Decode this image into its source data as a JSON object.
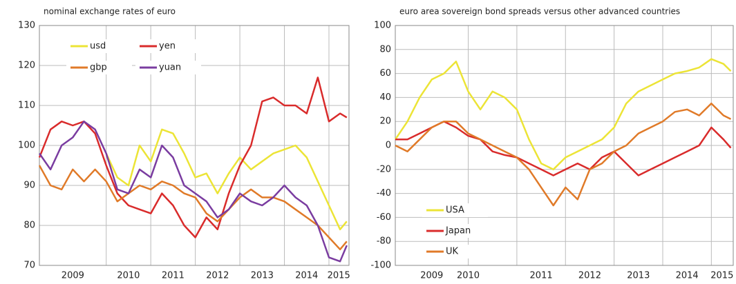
{
  "chart_data": [
    {
      "type": "line",
      "title": "nominal exchange rates of euro",
      "x": [
        2008.5,
        2008.75,
        2009.0,
        2009.25,
        2009.5,
        2009.75,
        2010.0,
        2010.25,
        2010.5,
        2010.75,
        2011.0,
        2011.25,
        2011.5,
        2011.75,
        2012.0,
        2012.25,
        2012.5,
        2012.75,
        2013.0,
        2013.25,
        2013.5,
        2013.75,
        2014.0,
        2014.25,
        2014.5,
        2014.75,
        2015.0,
        2015.25,
        2015.4
      ],
      "series": [
        {
          "name": "usd",
          "color": "#ece436",
          "values": [
            null,
            null,
            null,
            null,
            null,
            null,
            98,
            92,
            90,
            100,
            96,
            104,
            103,
            98,
            92,
            93,
            88,
            93,
            97,
            94,
            96,
            98,
            99,
            100,
            97,
            91,
            85,
            79,
            81
          ]
        },
        {
          "name": "yen",
          "color": "#d92b2b",
          "values": [
            97,
            104,
            106,
            105,
            106,
            103,
            95,
            88,
            85,
            84,
            83,
            88,
            85,
            80,
            77,
            82,
            79,
            88,
            95,
            100,
            111,
            112,
            110,
            110,
            108,
            117,
            106,
            108,
            107
          ]
        },
        {
          "name": "gbp",
          "color": "#e07a28",
          "values": [
            95,
            90,
            89,
            94,
            91,
            94,
            91,
            86,
            88,
            90,
            89,
            91,
            90,
            88,
            87,
            83,
            81,
            84,
            87,
            89,
            87,
            87,
            86,
            84,
            82,
            80,
            77,
            74,
            76
          ]
        },
        {
          "name": "yuan",
          "color": "#7a3ca0",
          "values": [
            98,
            94,
            100,
            102,
            106,
            104,
            98,
            89,
            88,
            94,
            92,
            100,
            97,
            90,
            88,
            86,
            82,
            84,
            88,
            86,
            85,
            87,
            90,
            87,
            85,
            80,
            72,
            71,
            75
          ]
        }
      ],
      "xlim": [
        2008.5,
        2015.45
      ],
      "xticks": [
        {
          "value": 2009.25,
          "label": "2009"
        },
        {
          "value": 2010.5,
          "label": "2010"
        },
        {
          "value": 2011.5,
          "label": "2011"
        },
        {
          "value": 2012.5,
          "label": "2012"
        },
        {
          "value": 2013.5,
          "label": "2013"
        },
        {
          "value": 2014.5,
          "label": "2014"
        },
        {
          "value": 2015.22,
          "label": "2015"
        }
      ],
      "xgrid": [
        2010,
        2011,
        2012,
        2013,
        2014,
        2015
      ],
      "ylim": [
        70,
        130
      ],
      "yticks": [
        70,
        80,
        90,
        100,
        110,
        120,
        130
      ],
      "grid": true,
      "legend": "upper left",
      "legend_columns": 2
    },
    {
      "type": "line",
      "title": "euro area sovereign bond spreads versus other advanced countries",
      "x": [
        2008.5,
        2008.75,
        2009.0,
        2009.25,
        2009.5,
        2009.75,
        2010.0,
        2010.25,
        2010.5,
        2010.75,
        2011.0,
        2011.25,
        2011.5,
        2011.75,
        2012.0,
        2012.25,
        2012.5,
        2012.75,
        2013.0,
        2013.25,
        2013.5,
        2013.75,
        2014.0,
        2014.25,
        2014.5,
        2014.75,
        2015.0,
        2015.25,
        2015.4
      ],
      "series": [
        {
          "name": "USA",
          "color": "#ece436",
          "values": [
            5,
            20,
            40,
            55,
            60,
            70,
            45,
            30,
            45,
            40,
            30,
            5,
            -15,
            -20,
            -10,
            -5,
            0,
            5,
            15,
            35,
            45,
            50,
            55,
            60,
            62,
            65,
            72,
            68,
            62
          ]
        },
        {
          "name": "Japan",
          "color": "#d92b2b",
          "values": [
            5,
            5,
            10,
            15,
            20,
            15,
            8,
            5,
            -5,
            -8,
            -10,
            -15,
            -20,
            -25,
            -20,
            -15,
            -20,
            -10,
            -5,
            -15,
            -25,
            -20,
            -15,
            -10,
            -5,
            0,
            15,
            5,
            -2
          ]
        },
        {
          "name": "UK",
          "color": "#e07a28",
          "values": [
            0,
            -5,
            5,
            15,
            20,
            20,
            10,
            5,
            0,
            -5,
            -10,
            -20,
            -35,
            -50,
            -35,
            -45,
            -20,
            -15,
            -5,
            0,
            10,
            15,
            20,
            28,
            30,
            25,
            35,
            25,
            22
          ]
        }
      ],
      "xlim": [
        2008.5,
        2015.45
      ],
      "xticks": [
        {
          "value": 2009.25,
          "label": "2009"
        },
        {
          "value": 2010.0,
          "label": "2010"
        },
        {
          "value": 2011.5,
          "label": "2011"
        },
        {
          "value": 2012.5,
          "label": "2012"
        },
        {
          "value": 2013.5,
          "label": "2013"
        },
        {
          "value": 2014.5,
          "label": "2014"
        },
        {
          "value": 2015.22,
          "label": "2015"
        }
      ],
      "xgrid": [
        2010,
        2011,
        2012,
        2013,
        2014,
        2015
      ],
      "ylim": [
        -100,
        100
      ],
      "yticks": [
        -100,
        -80,
        -60,
        -40,
        -20,
        0,
        20,
        40,
        60,
        80,
        100
      ],
      "grid": true,
      "legend": "lower left",
      "legend_columns": 1
    }
  ]
}
